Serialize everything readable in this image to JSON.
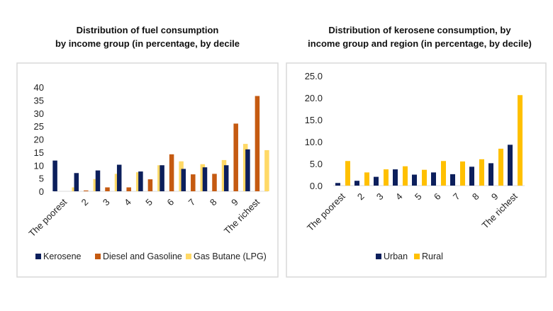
{
  "chart_data": [
    {
      "type": "bar",
      "title": [
        "Distribution of fuel consumption",
        "by income group (in percentage, by decile"
      ],
      "categories": [
        "The poorest",
        "2",
        "3",
        "4",
        "5",
        "6",
        "7",
        "8",
        "9",
        "The richest"
      ],
      "yticks": [
        "0",
        "5",
        "10",
        "15",
        "20",
        "25",
        "30",
        "35",
        "40"
      ],
      "ylim": [
        0,
        40
      ],
      "grid": false,
      "legend": "bottom",
      "series": [
        {
          "name": "Kerosene",
          "color": "#0c1f5c",
          "values": [
            11.8,
            7.0,
            8.0,
            10.2,
            7.6,
            10.0,
            8.6,
            9.2,
            10.0,
            16.1
          ]
        },
        {
          "name": "Diesel and Gasoline",
          "color": "#c55a11",
          "values": [
            0,
            0.3,
            1.5,
            1.5,
            4.6,
            14.2,
            6.5,
            6.7,
            26.0,
            36.6
          ]
        },
        {
          "name": "Gas Butane (LPG)",
          "color": "#ffd966",
          "values": [
            1.5,
            4.7,
            6.7,
            7.3,
            10.0,
            11.5,
            10.4,
            12.0,
            18.2,
            15.8
          ]
        }
      ]
    },
    {
      "type": "bar",
      "title": [
        "Distribution of kerosene consumption, by",
        "income group and region (in percentage, by decile)"
      ],
      "categories": [
        "The poorest",
        "2",
        "3",
        "4",
        "5",
        "6",
        "7",
        "8",
        "9",
        "The richest"
      ],
      "yticks": [
        "0.0",
        "5.0",
        "10.0",
        "15.0",
        "20.0",
        "25.0"
      ],
      "ylim": [
        0,
        25
      ],
      "grid": false,
      "legend": "bottom",
      "series": [
        {
          "name": "Urban",
          "color": "#0c1f5c",
          "values": [
            0.6,
            1.1,
            2.0,
            3.7,
            2.5,
            3.0,
            2.6,
            4.3,
            5.1,
            9.3
          ]
        },
        {
          "name": "Rural",
          "color": "#ffc000",
          "values": [
            5.6,
            3.0,
            3.7,
            4.4,
            3.6,
            5.6,
            5.5,
            6.0,
            8.4,
            20.6
          ]
        }
      ]
    }
  ]
}
